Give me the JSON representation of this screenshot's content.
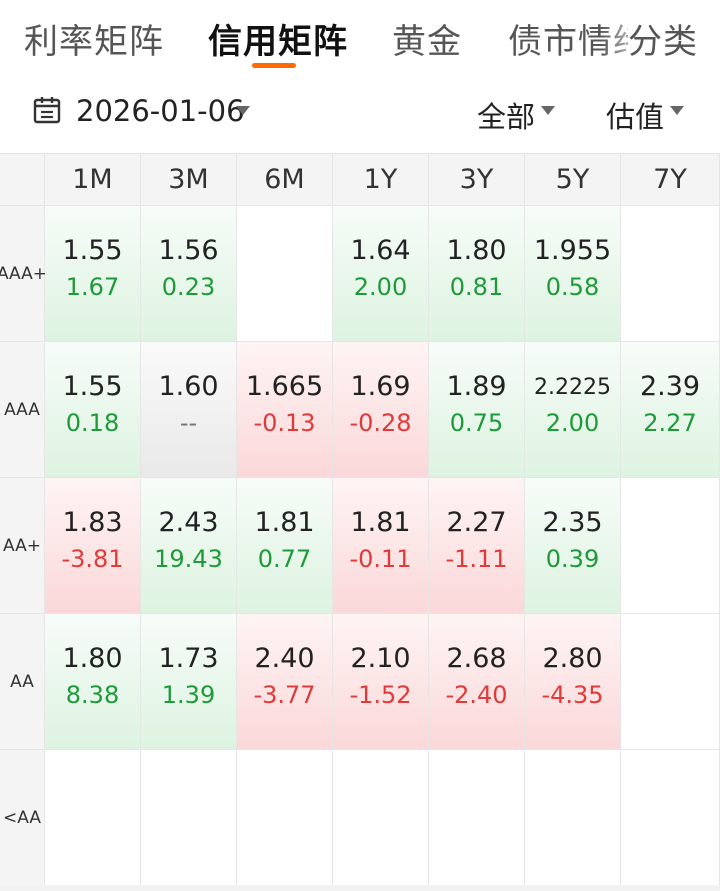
{
  "tabs": [
    {
      "label": "利率矩阵",
      "active": false
    },
    {
      "label": "信用矩阵",
      "active": true
    },
    {
      "label": "黄金",
      "active": false
    },
    {
      "label": "债市情绪",
      "active": false
    },
    {
      "label": "分类",
      "active": false
    }
  ],
  "filters": {
    "date": "2026-01-06",
    "scope": "全部",
    "metric": "估值"
  },
  "colors": {
    "accent": "#ff6a00",
    "up": "#1f9a3a",
    "down": "#e03a3a"
  },
  "matrix": {
    "columns": [
      "1M",
      "3M",
      "6M",
      "1Y",
      "3Y",
      "5Y",
      "7Y"
    ],
    "rows": [
      {
        "label": "AAA+",
        "cells": [
          {
            "value": "1.55",
            "change": "1.67",
            "trend": "up"
          },
          {
            "value": "1.56",
            "change": "0.23",
            "trend": "up"
          },
          {
            "value": "",
            "change": "",
            "trend": "empty"
          },
          {
            "value": "1.64",
            "change": "2.00",
            "trend": "up"
          },
          {
            "value": "1.80",
            "change": "0.81",
            "trend": "up"
          },
          {
            "value": "1.955",
            "change": "0.58",
            "trend": "up"
          },
          {
            "value": "",
            "change": "",
            "trend": "empty"
          }
        ]
      },
      {
        "label": "AAA",
        "cells": [
          {
            "value": "1.55",
            "change": "0.18",
            "trend": "up"
          },
          {
            "value": "1.60",
            "change": "--",
            "trend": "flat"
          },
          {
            "value": "1.665",
            "change": "-0.13",
            "trend": "down"
          },
          {
            "value": "1.69",
            "change": "-0.28",
            "trend": "down"
          },
          {
            "value": "1.89",
            "change": "0.75",
            "trend": "up"
          },
          {
            "value": "2.2225",
            "change": "2.00",
            "trend": "up"
          },
          {
            "value": "2.39",
            "change": "2.27",
            "trend": "up"
          }
        ]
      },
      {
        "label": "AA+",
        "cells": [
          {
            "value": "1.83",
            "change": "-3.81",
            "trend": "down"
          },
          {
            "value": "2.43",
            "change": "19.43",
            "trend": "up"
          },
          {
            "value": "1.81",
            "change": "0.77",
            "trend": "up"
          },
          {
            "value": "1.81",
            "change": "-0.11",
            "trend": "down"
          },
          {
            "value": "2.27",
            "change": "-1.11",
            "trend": "down"
          },
          {
            "value": "2.35",
            "change": "0.39",
            "trend": "up"
          },
          {
            "value": "",
            "change": "",
            "trend": "empty"
          }
        ]
      },
      {
        "label": "AA",
        "cells": [
          {
            "value": "1.80",
            "change": "8.38",
            "trend": "up"
          },
          {
            "value": "1.73",
            "change": "1.39",
            "trend": "up"
          },
          {
            "value": "2.40",
            "change": "-3.77",
            "trend": "down"
          },
          {
            "value": "2.10",
            "change": "-1.52",
            "trend": "down"
          },
          {
            "value": "2.68",
            "change": "-2.40",
            "trend": "down"
          },
          {
            "value": "2.80",
            "change": "-4.35",
            "trend": "down"
          },
          {
            "value": "",
            "change": "",
            "trend": "empty"
          }
        ]
      },
      {
        "label": "<AA",
        "cells": [
          {
            "value": "",
            "change": "",
            "trend": "empty"
          },
          {
            "value": "",
            "change": "",
            "trend": "empty"
          },
          {
            "value": "",
            "change": "",
            "trend": "empty"
          },
          {
            "value": "",
            "change": "",
            "trend": "empty"
          },
          {
            "value": "",
            "change": "",
            "trend": "empty"
          },
          {
            "value": "",
            "change": "",
            "trend": "empty"
          },
          {
            "value": "",
            "change": "",
            "trend": "empty"
          }
        ]
      }
    ]
  }
}
